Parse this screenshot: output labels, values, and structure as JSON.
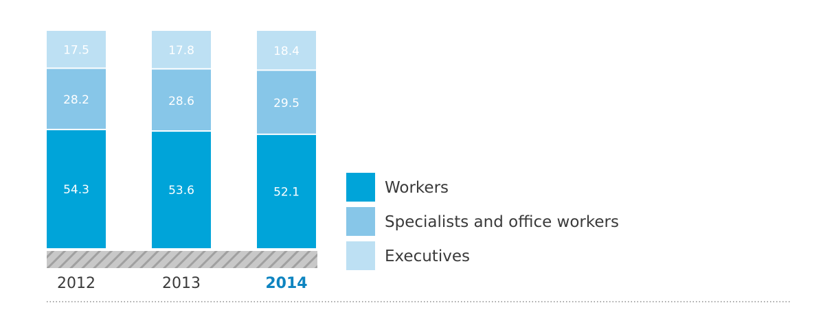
{
  "chart_data": {
    "type": "bar",
    "stacked": true,
    "categories": [
      "2012",
      "2013",
      "2014"
    ],
    "highlight_category": "2014",
    "series": [
      {
        "name": "Workers",
        "values": [
          54.3,
          53.6,
          52.1
        ],
        "color": "#00a4d9"
      },
      {
        "name": "Specialists and office workers",
        "values": [
          28.2,
          28.6,
          29.5
        ],
        "color": "#87c6e8"
      },
      {
        "name": "Executives",
        "values": [
          17.5,
          17.8,
          18.4
        ],
        "color": "#bde0f3"
      }
    ],
    "value_labels": [
      [
        "54.3",
        "53.6",
        "52.1"
      ],
      [
        "28.2",
        "28.6",
        "29.5"
      ],
      [
        "17.5",
        "17.8",
        "18.4"
      ]
    ],
    "ylim": [
      0,
      100
    ],
    "grid": false,
    "legend_position": "right"
  }
}
